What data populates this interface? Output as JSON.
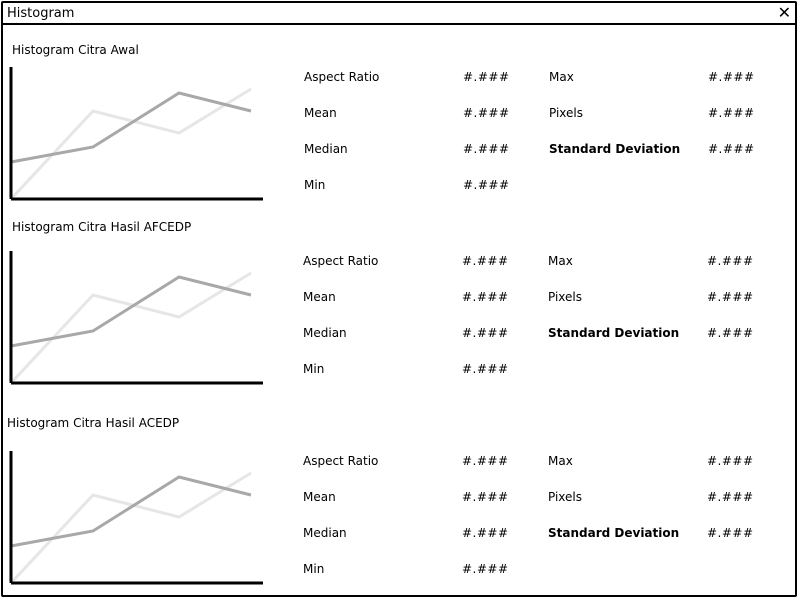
{
  "window": {
    "title": "Histogram"
  },
  "sections": [
    {
      "title": "Histogram Citra Awal",
      "stats": {
        "aspect_ratio_label": "Aspect Ratio",
        "aspect_ratio_value": "#.###",
        "mean_label": "Mean",
        "mean_value": "#.###",
        "median_label": "Median",
        "median_value": "#.###",
        "min_label": "Min",
        "min_value": "#.###",
        "max_label": "Max",
        "max_value": "#.###",
        "pixels_label": "Pixels",
        "pixels_value": "#.###",
        "std_label": "Standard Deviation",
        "std_value": "#.###"
      }
    },
    {
      "title": "Histogram Citra Hasil AFCEDP",
      "stats": {
        "aspect_ratio_label": "Aspect Ratio",
        "aspect_ratio_value": "#.###",
        "mean_label": "Mean",
        "mean_value": "#.###",
        "median_label": "Median",
        "median_value": "#.###",
        "min_label": "Min",
        "min_value": "#.###",
        "max_label": "Max",
        "max_value": "#.###",
        "pixels_label": "Pixels",
        "pixels_value": "#.###",
        "std_label": "Standard Deviation",
        "std_value": "#.###"
      }
    },
    {
      "title": "Histogram Citra Hasil ACEDP",
      "stats": {
        "aspect_ratio_label": "Aspect Ratio",
        "aspect_ratio_value": "#.###",
        "mean_label": "Mean",
        "mean_value": "#.###",
        "median_label": "Median",
        "median_value": "#.###",
        "min_label": "Min",
        "min_value": "#.###",
        "max_label": "Max",
        "max_value": "#.###",
        "pixels_label": "Pixels",
        "pixels_value": "#.###",
        "std_label": "Standard Deviation",
        "std_value": "#.###"
      }
    }
  ],
  "chart_style": {
    "dark_line_color": "#a8a8a8",
    "light_line_color": "#e6e6e6",
    "axis_color": "#000000"
  }
}
